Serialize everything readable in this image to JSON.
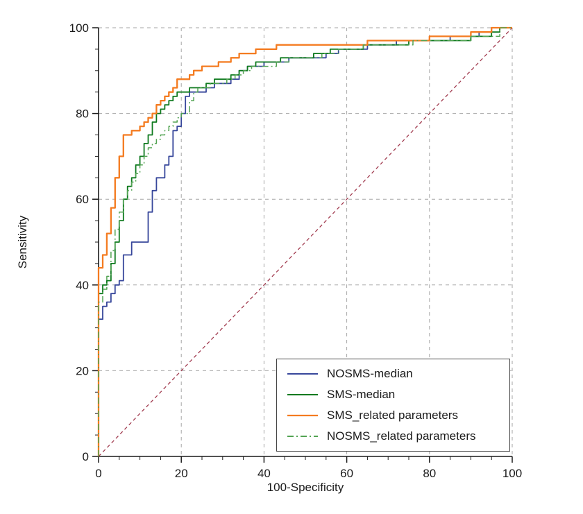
{
  "chart_data": {
    "type": "line",
    "title": "",
    "xlabel": "100-Specificity",
    "ylabel": "Sensitivity",
    "xlim": [
      0,
      100
    ],
    "ylim": [
      0,
      100
    ],
    "x_ticks": [
      0,
      20,
      40,
      60,
      80,
      100
    ],
    "y_ticks": [
      0,
      20,
      40,
      60,
      80,
      100
    ],
    "minor_tick_step": 5,
    "grid": {
      "show": true,
      "style": "dashed",
      "color": "#a6a6a6",
      "positions": [
        20,
        40,
        60,
        80,
        100
      ]
    },
    "axis_color": "#1a1a1a",
    "legend": {
      "position": "bottom-right",
      "border_color": "#444444",
      "background": "#ffffff"
    },
    "reference_line": {
      "name": "chance-diagonal",
      "color": "#a23c50",
      "style": "dashed",
      "width": 1.3,
      "interpolation": "linear",
      "points": [
        [
          0,
          0
        ],
        [
          100,
          100
        ]
      ]
    },
    "series": [
      {
        "name": "NOSMS-median",
        "color": "#37479b",
        "style": "solid",
        "width": 1.8,
        "interpolation": "step",
        "points": [
          [
            0,
            0
          ],
          [
            0,
            26
          ],
          [
            1,
            32
          ],
          [
            2,
            35
          ],
          [
            3,
            36
          ],
          [
            4,
            38
          ],
          [
            5,
            40
          ],
          [
            6,
            41
          ],
          [
            8,
            47
          ],
          [
            10,
            50
          ],
          [
            12,
            50
          ],
          [
            12,
            55
          ],
          [
            13,
            57
          ],
          [
            14,
            62
          ],
          [
            15,
            65
          ],
          [
            16,
            65
          ],
          [
            17,
            68
          ],
          [
            18,
            70
          ],
          [
            18,
            74
          ],
          [
            19,
            76
          ],
          [
            20,
            77
          ],
          [
            21,
            80
          ],
          [
            22,
            84
          ],
          [
            24,
            85
          ],
          [
            26,
            85
          ],
          [
            28,
            86
          ],
          [
            30,
            87
          ],
          [
            32,
            87
          ],
          [
            34,
            88
          ],
          [
            36,
            90
          ],
          [
            38,
            91
          ],
          [
            40,
            91
          ],
          [
            42,
            92
          ],
          [
            46,
            92
          ],
          [
            50,
            93
          ],
          [
            55,
            93
          ],
          [
            58,
            94
          ],
          [
            60,
            95
          ],
          [
            65,
            95
          ],
          [
            68,
            96
          ],
          [
            72,
            96
          ],
          [
            80,
            97
          ],
          [
            85,
            97
          ],
          [
            88,
            98
          ],
          [
            92,
            98
          ],
          [
            95,
            99
          ],
          [
            100,
            100
          ]
        ]
      },
      {
        "name": "SMS-median",
        "color": "#0f7a1f",
        "style": "solid",
        "width": 1.8,
        "interpolation": "step",
        "points": [
          [
            0,
            0
          ],
          [
            0,
            36
          ],
          [
            1,
            38
          ],
          [
            2,
            40
          ],
          [
            3,
            41
          ],
          [
            4,
            45
          ],
          [
            5,
            50
          ],
          [
            6,
            55
          ],
          [
            7,
            60
          ],
          [
            8,
            63
          ],
          [
            9,
            65
          ],
          [
            10,
            68
          ],
          [
            11,
            70
          ],
          [
            12,
            73
          ],
          [
            13,
            75
          ],
          [
            14,
            78
          ],
          [
            15,
            80
          ],
          [
            16,
            81
          ],
          [
            17,
            82
          ],
          [
            18,
            83
          ],
          [
            19,
            84
          ],
          [
            20,
            85
          ],
          [
            22,
            85
          ],
          [
            24,
            86
          ],
          [
            26,
            86
          ],
          [
            28,
            87
          ],
          [
            30,
            88
          ],
          [
            32,
            88
          ],
          [
            34,
            89
          ],
          [
            36,
            90
          ],
          [
            38,
            91
          ],
          [
            40,
            92
          ],
          [
            44,
            92
          ],
          [
            48,
            93
          ],
          [
            52,
            93
          ],
          [
            56,
            94
          ],
          [
            60,
            95
          ],
          [
            64,
            95
          ],
          [
            67,
            96
          ],
          [
            70,
            96
          ],
          [
            75,
            96
          ],
          [
            80,
            97
          ],
          [
            85,
            97
          ],
          [
            90,
            97
          ],
          [
            95,
            98
          ],
          [
            97,
            99
          ],
          [
            100,
            100
          ]
        ]
      },
      {
        "name": "SMS_related parameters",
        "color": "#f47b20",
        "style": "solid",
        "width": 2.3,
        "interpolation": "step",
        "points": [
          [
            0,
            0
          ],
          [
            0,
            20
          ],
          [
            0,
            41
          ],
          [
            1,
            44
          ],
          [
            2,
            47
          ],
          [
            2,
            50
          ],
          [
            3,
            52
          ],
          [
            3,
            55
          ],
          [
            4,
            58
          ],
          [
            4,
            62
          ],
          [
            5,
            65
          ],
          [
            5,
            68
          ],
          [
            6,
            70
          ],
          [
            6,
            74
          ],
          [
            7,
            75
          ],
          [
            8,
            75
          ],
          [
            9,
            76
          ],
          [
            10,
            76
          ],
          [
            11,
            77
          ],
          [
            12,
            78
          ],
          [
            13,
            79
          ],
          [
            14,
            80
          ],
          [
            15,
            82
          ],
          [
            16,
            83
          ],
          [
            17,
            84
          ],
          [
            18,
            85
          ],
          [
            19,
            86
          ],
          [
            20,
            88
          ],
          [
            22,
            88
          ],
          [
            23,
            89
          ],
          [
            25,
            90
          ],
          [
            27,
            91
          ],
          [
            29,
            91
          ],
          [
            30,
            92
          ],
          [
            32,
            92
          ],
          [
            34,
            93
          ],
          [
            36,
            94
          ],
          [
            38,
            94
          ],
          [
            40,
            95
          ],
          [
            43,
            95
          ],
          [
            46,
            96
          ],
          [
            50,
            96
          ],
          [
            55,
            96
          ],
          [
            60,
            96
          ],
          [
            65,
            96
          ],
          [
            68,
            97
          ],
          [
            75,
            97
          ],
          [
            80,
            97
          ],
          [
            84,
            98
          ],
          [
            90,
            98
          ],
          [
            95,
            99
          ],
          [
            100,
            100
          ]
        ]
      },
      {
        "name": "NOSMS_related parameters",
        "color": "#52a352",
        "style": "dash-dot",
        "width": 1.5,
        "interpolation": "step",
        "points": [
          [
            0,
            0
          ],
          [
            0,
            25
          ],
          [
            1,
            36
          ],
          [
            2,
            39
          ],
          [
            3,
            42
          ],
          [
            4,
            48
          ],
          [
            5,
            53
          ],
          [
            6,
            57
          ],
          [
            7,
            60
          ],
          [
            8,
            62
          ],
          [
            9,
            64
          ],
          [
            10,
            66
          ],
          [
            11,
            68
          ],
          [
            12,
            70
          ],
          [
            13,
            72
          ],
          [
            14,
            73
          ],
          [
            15,
            74
          ],
          [
            16,
            75
          ],
          [
            17,
            76
          ],
          [
            18,
            77
          ],
          [
            19,
            78
          ],
          [
            20,
            79
          ],
          [
            22,
            80
          ],
          [
            23,
            83
          ],
          [
            24,
            85
          ],
          [
            25,
            86
          ],
          [
            27,
            86
          ],
          [
            29,
            87
          ],
          [
            31,
            87
          ],
          [
            33,
            88
          ],
          [
            35,
            89
          ],
          [
            37,
            90
          ],
          [
            40,
            91
          ],
          [
            43,
            91
          ],
          [
            46,
            92
          ],
          [
            50,
            93
          ],
          [
            54,
            93
          ],
          [
            58,
            94
          ],
          [
            60,
            95
          ],
          [
            64,
            95
          ],
          [
            68,
            96
          ],
          [
            72,
            96
          ],
          [
            76,
            96
          ],
          [
            80,
            97
          ],
          [
            85,
            97
          ],
          [
            90,
            97
          ],
          [
            94,
            98
          ],
          [
            97,
            98
          ],
          [
            100,
            100
          ]
        ]
      }
    ]
  }
}
